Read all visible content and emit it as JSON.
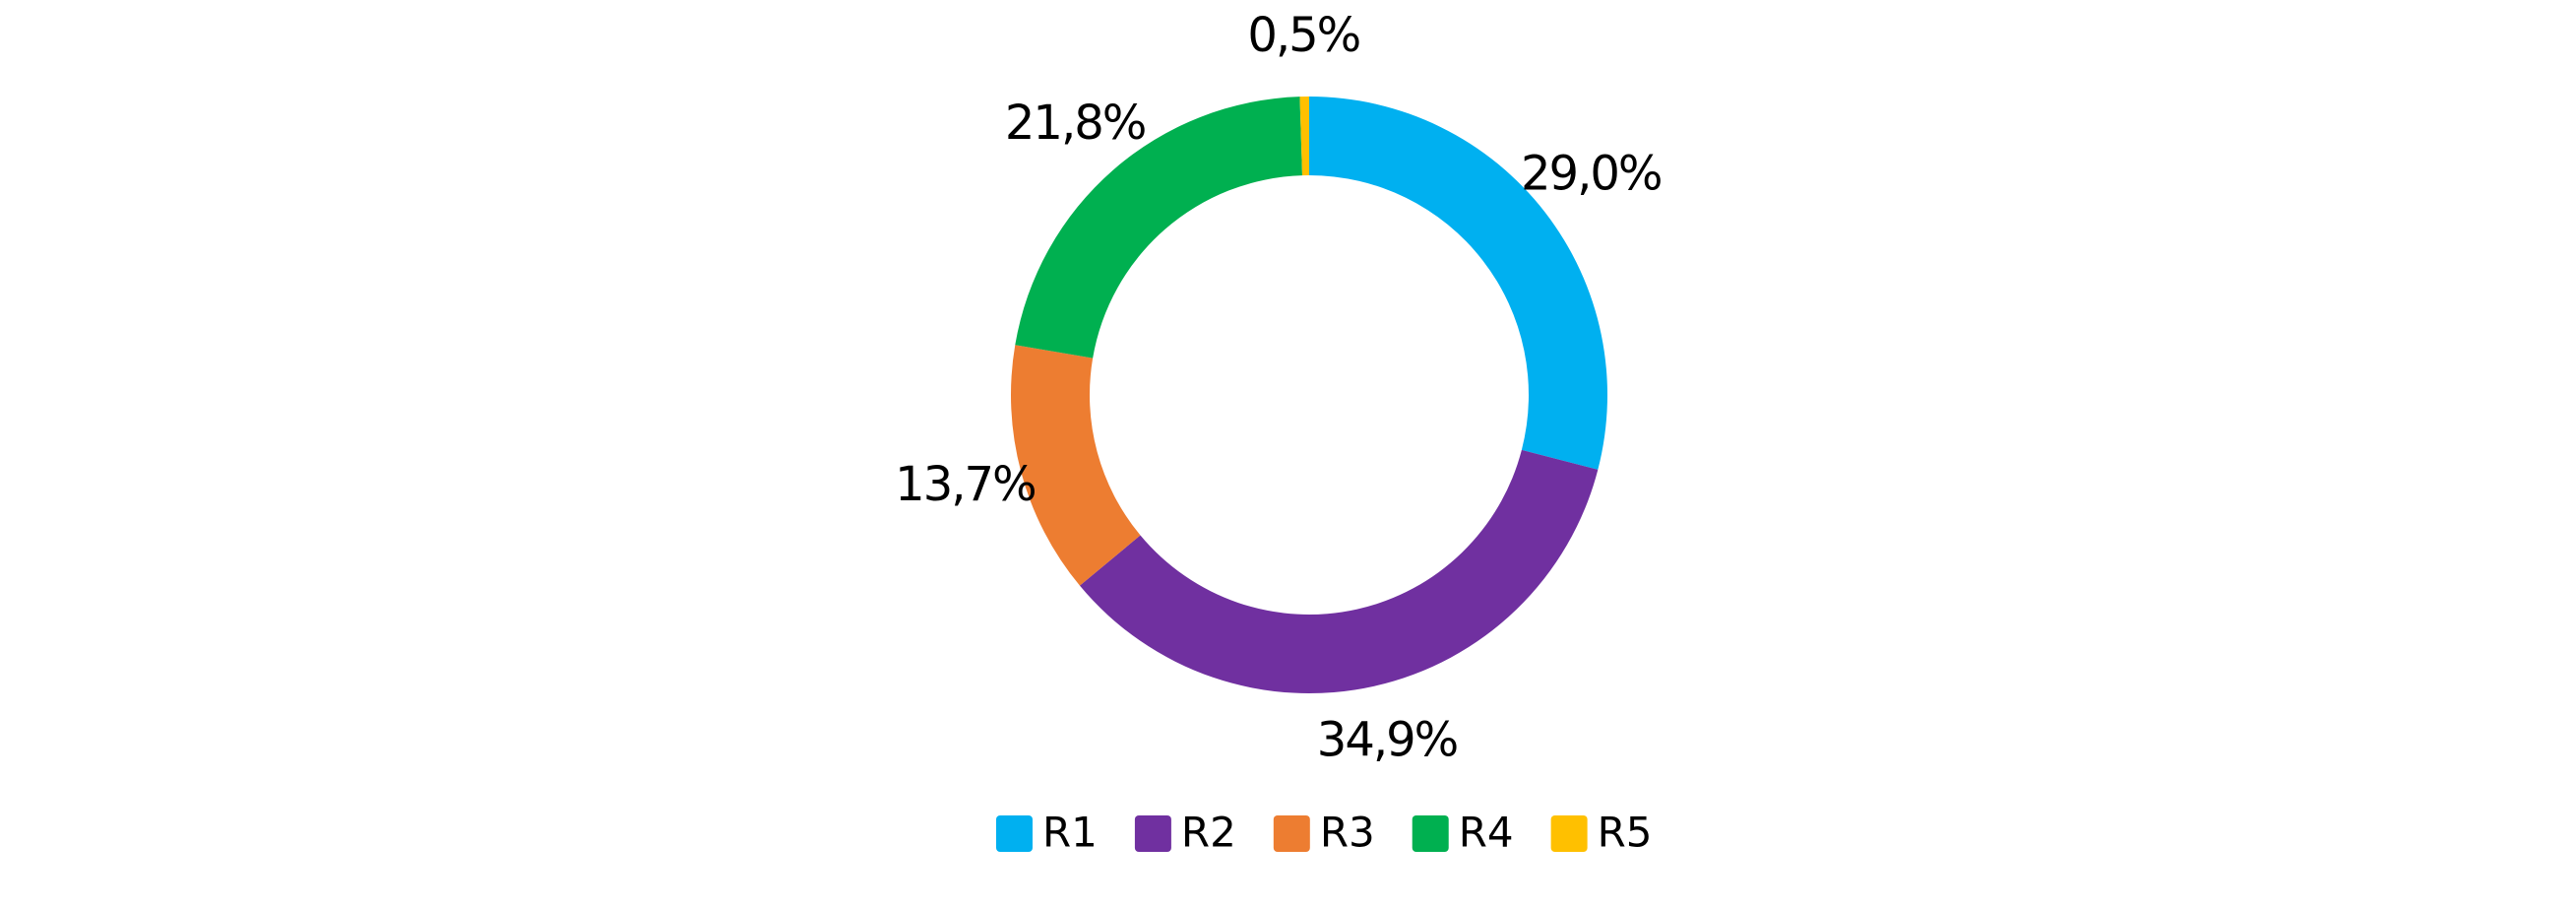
{
  "chart_data": {
    "type": "donut",
    "categories": [
      "R1",
      "R2",
      "R3",
      "R4",
      "R5"
    ],
    "values": [
      29.0,
      34.9,
      13.7,
      21.8,
      0.5
    ],
    "value_labels": [
      "29,0%",
      "34,9%",
      "13,7%",
      "21,8%",
      "0,5%"
    ],
    "colors": [
      "#00b0f0",
      "#7030a0",
      "#ed7d31",
      "#00b050",
      "#ffc000"
    ],
    "legend": "bottom"
  }
}
